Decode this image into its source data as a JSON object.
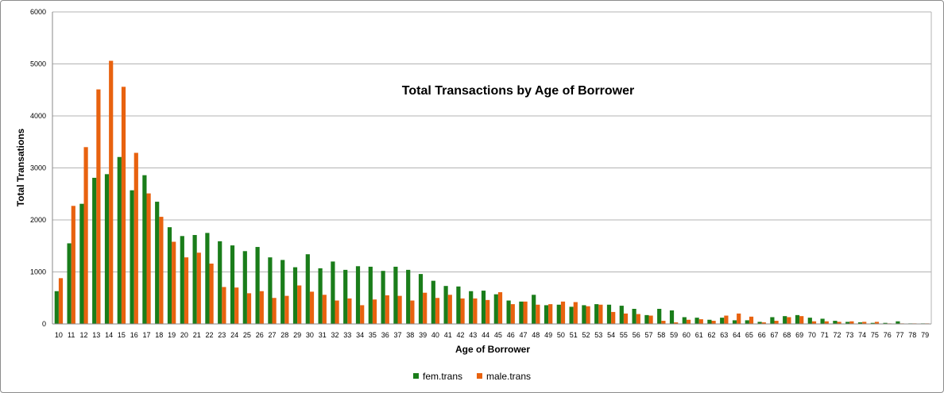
{
  "chart_data": {
    "type": "bar",
    "title": "Total Transactions by Age of Borrower",
    "xlabel": "Age of Borrower",
    "ylabel": "Total Transations",
    "ylim": [
      0,
      6000
    ],
    "yticks": [
      0,
      1000,
      2000,
      3000,
      4000,
      5000,
      6000
    ],
    "grid": true,
    "legend_position": "bottom",
    "categories": [
      "10",
      "11",
      "12",
      "13",
      "14",
      "15",
      "16",
      "17",
      "18",
      "19",
      "20",
      "21",
      "22",
      "23",
      "24",
      "25",
      "26",
      "27",
      "28",
      "29",
      "30",
      "31",
      "32",
      "33",
      "34",
      "35",
      "36",
      "37",
      "38",
      "39",
      "40",
      "41",
      "42",
      "43",
      "44",
      "45",
      "46",
      "47",
      "48",
      "49",
      "50",
      "51",
      "52",
      "53",
      "54",
      "55",
      "56",
      "57",
      "58",
      "59",
      "60",
      "61",
      "62",
      "63",
      "64",
      "65",
      "66",
      "67",
      "68",
      "69",
      "70",
      "71",
      "72",
      "73",
      "74",
      "75",
      "76",
      "77",
      "78",
      "79"
    ],
    "series": [
      {
        "name": "fem.trans",
        "color": "#1a7d1a",
        "values": [
          630,
          1550,
          2310,
          2810,
          2880,
          3210,
          2570,
          2860,
          2350,
          1860,
          1690,
          1710,
          1750,
          1590,
          1510,
          1400,
          1480,
          1280,
          1230,
          1090,
          1340,
          1070,
          1200,
          1040,
          1110,
          1100,
          1020,
          1100,
          1040,
          960,
          830,
          730,
          720,
          630,
          640,
          570,
          450,
          430,
          560,
          360,
          370,
          330,
          360,
          380,
          370,
          350,
          290,
          170,
          290,
          260,
          130,
          120,
          80,
          120,
          70,
          70,
          40,
          130,
          150,
          170,
          120,
          100,
          60,
          40,
          30,
          20,
          20,
          50,
          10,
          10
        ]
      },
      {
        "name": "male.trans",
        "color": "#e8620f",
        "values": [
          880,
          2270,
          3400,
          4510,
          5060,
          4560,
          3290,
          2510,
          2060,
          1580,
          1280,
          1370,
          1160,
          710,
          700,
          590,
          630,
          500,
          540,
          740,
          620,
          560,
          450,
          490,
          360,
          470,
          550,
          540,
          450,
          600,
          500,
          560,
          490,
          490,
          460,
          610,
          380,
          430,
          370,
          380,
          430,
          420,
          340,
          370,
          230,
          200,
          190,
          160,
          60,
          30,
          80,
          90,
          60,
          160,
          200,
          140,
          30,
          60,
          130,
          150,
          50,
          50,
          40,
          50,
          40,
          40,
          10,
          10,
          10,
          10
        ]
      }
    ]
  }
}
